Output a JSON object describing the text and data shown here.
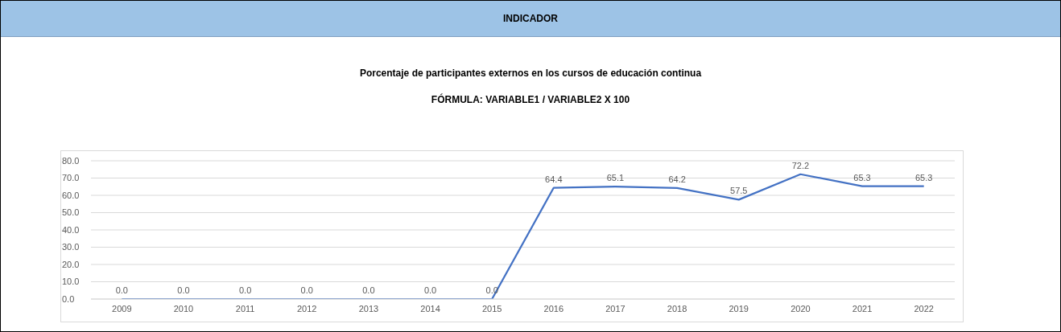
{
  "chart_data": {
    "type": "line",
    "title": "INDICADOR",
    "subtitle": "Porcentaje de participantes externos en los cursos de educación continua",
    "annotations": [
      "FÓRMULA: VARIABLE1 / VARIABLE2 X 100"
    ],
    "categories": [
      "2009",
      "2010",
      "2011",
      "2012",
      "2013",
      "2014",
      "2015",
      "2016",
      "2017",
      "2018",
      "2019",
      "2020",
      "2021",
      "2022"
    ],
    "series": [
      {
        "color": "#4472c4",
        "values": [
          0,
          0,
          0,
          0,
          0,
          0,
          0,
          64.4,
          65.1,
          64.2,
          57.5,
          72.2,
          65.3,
          65.3
        ],
        "value_labels": [
          "0.0",
          "0.0",
          "0.0",
          "0.0",
          "0.0",
          "0.0",
          "0.0",
          "64.4",
          "65.1",
          "64.2",
          "57.5",
          "72.2",
          "65.3",
          "65.3"
        ]
      }
    ],
    "ylim": [
      0,
      80
    ],
    "yticks": [
      {
        "value": 0,
        "label": "0.0"
      },
      {
        "value": 10,
        "label": "10.0"
      },
      {
        "value": 20,
        "label": "20.0"
      },
      {
        "value": 30,
        "label": "30.0"
      },
      {
        "value": 40,
        "label": "40.0"
      },
      {
        "value": 50,
        "label": "50.0"
      },
      {
        "value": 60,
        "label": "60.0"
      },
      {
        "value": 70,
        "label": "70.0"
      },
      {
        "value": 80,
        "label": "80.0"
      }
    ],
    "grid": "y",
    "legend": false,
    "marker": "none",
    "line_style": "solid"
  }
}
